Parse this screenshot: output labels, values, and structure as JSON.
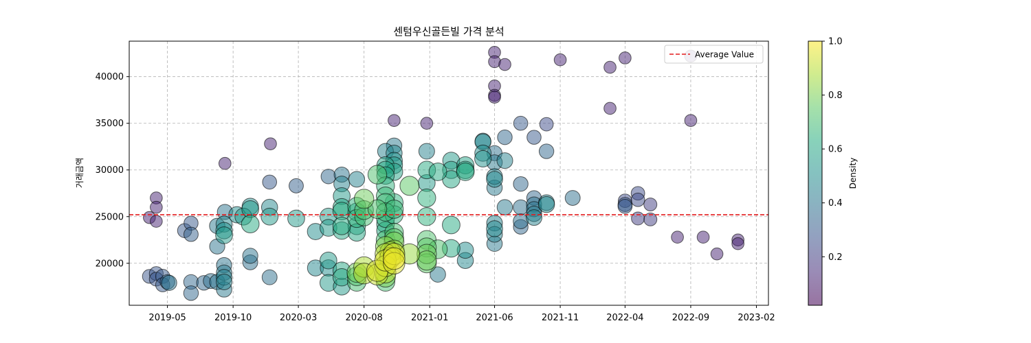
{
  "chart_data": {
    "type": "scatter",
    "title": "센텀우신골든빌 가격 분석",
    "xlabel": "",
    "ylabel": "거래금액",
    "x_ticks": [
      "2019-05",
      "2019-10",
      "2020-03",
      "2020-08",
      "2021-01",
      "2021-06",
      "2021-11",
      "2022-04",
      "2022-09",
      "2023-02"
    ],
    "x_range": [
      "2019-02-01",
      "2023-03-01"
    ],
    "y_ticks": [
      20000,
      25000,
      30000,
      35000,
      40000
    ],
    "ylim": [
      15500,
      43800
    ],
    "grid": true,
    "reference_line": {
      "label": "Average Value",
      "value": 25200,
      "color": "#e31a1c",
      "style": "dashed"
    },
    "legend": {
      "placement": "top-right",
      "entries": [
        "Average Value"
      ]
    },
    "colorbar": {
      "label": "Density",
      "ticks": [
        0.2,
        0.4,
        0.6,
        0.8,
        1.0
      ],
      "range": [
        0.02,
        1.0
      ],
      "colormap": "viridis"
    },
    "points": [
      {
        "x": "2019-03-20",
        "y": 24900,
        "d": 0.12
      },
      {
        "x": "2019-03-20",
        "y": 18600,
        "d": 0.28
      },
      {
        "x": "2019-04-05",
        "y": 27000,
        "d": 0.12
      },
      {
        "x": "2019-04-05",
        "y": 26000,
        "d": 0.12
      },
      {
        "x": "2019-04-05",
        "y": 24500,
        "d": 0.12
      },
      {
        "x": "2019-04-05",
        "y": 18900,
        "d": 0.28
      },
      {
        "x": "2019-04-05",
        "y": 18300,
        "d": 0.28
      },
      {
        "x": "2019-04-20",
        "y": 18600,
        "d": 0.3
      },
      {
        "x": "2019-04-20",
        "y": 17700,
        "d": 0.3
      },
      {
        "x": "2019-05-01",
        "y": 18000,
        "d": 0.35
      },
      {
        "x": "2019-05-05",
        "y": 17900,
        "d": 0.4
      },
      {
        "x": "2019-06-10",
        "y": 23500,
        "d": 0.3
      },
      {
        "x": "2019-06-25",
        "y": 24300,
        "d": 0.3
      },
      {
        "x": "2019-06-25",
        "y": 23100,
        "d": 0.32
      },
      {
        "x": "2019-06-25",
        "y": 18000,
        "d": 0.35
      },
      {
        "x": "2019-06-25",
        "y": 16800,
        "d": 0.35
      },
      {
        "x": "2019-07-25",
        "y": 17900,
        "d": 0.35
      },
      {
        "x": "2019-08-10",
        "y": 18100,
        "d": 0.38
      },
      {
        "x": "2019-08-25",
        "y": 24000,
        "d": 0.42
      },
      {
        "x": "2019-08-25",
        "y": 21800,
        "d": 0.4
      },
      {
        "x": "2019-08-25",
        "y": 18000,
        "d": 0.4
      },
      {
        "x": "2019-09-10",
        "y": 24200,
        "d": 0.48
      },
      {
        "x": "2019-09-10",
        "y": 23500,
        "d": 0.52
      },
      {
        "x": "2019-09-10",
        "y": 23000,
        "d": 0.55
      },
      {
        "x": "2019-09-10",
        "y": 19800,
        "d": 0.4
      },
      {
        "x": "2019-09-10",
        "y": 19000,
        "d": 0.42
      },
      {
        "x": "2019-09-10",
        "y": 18500,
        "d": 0.45
      },
      {
        "x": "2019-09-10",
        "y": 18000,
        "d": 0.45
      },
      {
        "x": "2019-09-10",
        "y": 17200,
        "d": 0.42
      },
      {
        "x": "2019-09-12",
        "y": 30700,
        "d": 0.12
      },
      {
        "x": "2019-09-12",
        "y": 25500,
        "d": 0.4
      },
      {
        "x": "2019-10-10",
        "y": 25200,
        "d": 0.5
      },
      {
        "x": "2019-10-25",
        "y": 25000,
        "d": 0.55
      },
      {
        "x": "2019-11-10",
        "y": 26100,
        "d": 0.5
      },
      {
        "x": "2019-11-10",
        "y": 25800,
        "d": 0.55
      },
      {
        "x": "2019-11-10",
        "y": 24200,
        "d": 0.62
      },
      {
        "x": "2019-11-10",
        "y": 20800,
        "d": 0.4
      },
      {
        "x": "2019-11-10",
        "y": 20100,
        "d": 0.38
      },
      {
        "x": "2019-12-25",
        "y": 28700,
        "d": 0.3
      },
      {
        "x": "2019-12-25",
        "y": 26000,
        "d": 0.48
      },
      {
        "x": "2019-12-25",
        "y": 25000,
        "d": 0.55
      },
      {
        "x": "2019-12-25",
        "y": 18500,
        "d": 0.38
      },
      {
        "x": "2019-12-27",
        "y": 32800,
        "d": 0.12
      },
      {
        "x": "2020-02-25",
        "y": 28300,
        "d": 0.32
      },
      {
        "x": "2020-02-25",
        "y": 24800,
        "d": 0.55
      },
      {
        "x": "2020-04-10",
        "y": 23400,
        "d": 0.5
      },
      {
        "x": "2020-04-10",
        "y": 19500,
        "d": 0.48
      },
      {
        "x": "2020-05-10",
        "y": 29300,
        "d": 0.35
      },
      {
        "x": "2020-05-10",
        "y": 25000,
        "d": 0.55
      },
      {
        "x": "2020-05-10",
        "y": 23800,
        "d": 0.55
      },
      {
        "x": "2020-05-10",
        "y": 20300,
        "d": 0.55
      },
      {
        "x": "2020-05-10",
        "y": 19500,
        "d": 0.5
      },
      {
        "x": "2020-05-10",
        "y": 17900,
        "d": 0.55
      },
      {
        "x": "2020-06-10",
        "y": 29500,
        "d": 0.4
      },
      {
        "x": "2020-06-10",
        "y": 28500,
        "d": 0.45
      },
      {
        "x": "2020-06-10",
        "y": 27200,
        "d": 0.55
      },
      {
        "x": "2020-06-10",
        "y": 26000,
        "d": 0.6
      },
      {
        "x": "2020-06-10",
        "y": 25600,
        "d": 0.62
      },
      {
        "x": "2020-06-10",
        "y": 24000,
        "d": 0.62
      },
      {
        "x": "2020-06-10",
        "y": 23500,
        "d": 0.6
      },
      {
        "x": "2020-06-10",
        "y": 19200,
        "d": 0.6
      },
      {
        "x": "2020-06-10",
        "y": 18500,
        "d": 0.6
      },
      {
        "x": "2020-06-10",
        "y": 17500,
        "d": 0.55
      },
      {
        "x": "2020-07-15",
        "y": 29000,
        "d": 0.45
      },
      {
        "x": "2020-07-15",
        "y": 26100,
        "d": 0.65
      },
      {
        "x": "2020-07-15",
        "y": 25500,
        "d": 0.62
      },
      {
        "x": "2020-07-15",
        "y": 24800,
        "d": 0.65
      },
      {
        "x": "2020-07-15",
        "y": 24000,
        "d": 0.6
      },
      {
        "x": "2020-07-15",
        "y": 23300,
        "d": 0.6
      },
      {
        "x": "2020-07-15",
        "y": 19000,
        "d": 0.78
      },
      {
        "x": "2020-07-15",
        "y": 18600,
        "d": 0.72
      },
      {
        "x": "2020-07-15",
        "y": 18000,
        "d": 0.7
      },
      {
        "x": "2020-08-01",
        "y": 26900,
        "d": 0.78
      },
      {
        "x": "2020-08-01",
        "y": 25700,
        "d": 0.72
      },
      {
        "x": "2020-08-01",
        "y": 25000,
        "d": 0.7
      },
      {
        "x": "2020-08-01",
        "y": 19600,
        "d": 0.88
      },
      {
        "x": "2020-08-01",
        "y": 18900,
        "d": 0.9
      },
      {
        "x": "2020-09-01",
        "y": 29500,
        "d": 0.72
      },
      {
        "x": "2020-09-01",
        "y": 25800,
        "d": 0.72
      },
      {
        "x": "2020-09-01",
        "y": 19200,
        "d": 0.95
      },
      {
        "x": "2020-09-01",
        "y": 18800,
        "d": 0.92
      },
      {
        "x": "2020-09-20",
        "y": 32000,
        "d": 0.45
      },
      {
        "x": "2020-09-20",
        "y": 30500,
        "d": 0.58
      },
      {
        "x": "2020-09-20",
        "y": 30000,
        "d": 0.6
      },
      {
        "x": "2020-09-20",
        "y": 29400,
        "d": 0.6
      },
      {
        "x": "2020-09-20",
        "y": 28300,
        "d": 0.65
      },
      {
        "x": "2020-09-20",
        "y": 27200,
        "d": 0.68
      },
      {
        "x": "2020-09-20",
        "y": 26500,
        "d": 0.68
      },
      {
        "x": "2020-09-20",
        "y": 25500,
        "d": 0.68
      },
      {
        "x": "2020-09-20",
        "y": 24800,
        "d": 0.65
      },
      {
        "x": "2020-09-20",
        "y": 24200,
        "d": 0.62
      },
      {
        "x": "2020-09-20",
        "y": 23500,
        "d": 0.62
      },
      {
        "x": "2020-09-20",
        "y": 22500,
        "d": 0.7
      },
      {
        "x": "2020-09-20",
        "y": 21800,
        "d": 0.82
      },
      {
        "x": "2020-09-20",
        "y": 21000,
        "d": 0.9
      },
      {
        "x": "2020-09-20",
        "y": 20300,
        "d": 0.95
      },
      {
        "x": "2020-09-20",
        "y": 19700,
        "d": 0.92
      },
      {
        "x": "2020-09-20",
        "y": 19000,
        "d": 0.9
      },
      {
        "x": "2020-09-20",
        "y": 18500,
        "d": 0.8
      },
      {
        "x": "2020-09-20",
        "y": 18000,
        "d": 0.7
      },
      {
        "x": "2020-10-01",
        "y": 21200,
        "d": 0.88
      },
      {
        "x": "2020-10-01",
        "y": 20600,
        "d": 0.9
      },
      {
        "x": "2020-10-10",
        "y": 35300,
        "d": 0.12
      },
      {
        "x": "2020-10-10",
        "y": 32600,
        "d": 0.42
      },
      {
        "x": "2020-10-10",
        "y": 31800,
        "d": 0.48
      },
      {
        "x": "2020-10-10",
        "y": 31000,
        "d": 0.52
      },
      {
        "x": "2020-10-10",
        "y": 30500,
        "d": 0.55
      },
      {
        "x": "2020-10-10",
        "y": 29800,
        "d": 0.58
      },
      {
        "x": "2020-10-10",
        "y": 26500,
        "d": 0.65
      },
      {
        "x": "2020-10-10",
        "y": 25800,
        "d": 0.68
      },
      {
        "x": "2020-10-10",
        "y": 25200,
        "d": 0.65
      },
      {
        "x": "2020-10-10",
        "y": 23300,
        "d": 0.7
      },
      {
        "x": "2020-10-10",
        "y": 22700,
        "d": 0.75
      },
      {
        "x": "2020-10-10",
        "y": 22300,
        "d": 0.8
      },
      {
        "x": "2020-10-10",
        "y": 21400,
        "d": 0.85
      },
      {
        "x": "2020-10-10",
        "y": 21000,
        "d": 0.95
      },
      {
        "x": "2020-10-10",
        "y": 20500,
        "d": 0.98
      },
      {
        "x": "2020-10-10",
        "y": 20000,
        "d": 0.96
      },
      {
        "x": "2020-11-15",
        "y": 28300,
        "d": 0.75
      },
      {
        "x": "2020-11-15",
        "y": 21000,
        "d": 0.85
      },
      {
        "x": "2020-12-25",
        "y": 35000,
        "d": 0.12
      },
      {
        "x": "2020-12-25",
        "y": 32000,
        "d": 0.45
      },
      {
        "x": "2020-12-25",
        "y": 30000,
        "d": 0.62
      },
      {
        "x": "2020-12-25",
        "y": 28600,
        "d": 0.55
      },
      {
        "x": "2020-12-25",
        "y": 27000,
        "d": 0.65
      },
      {
        "x": "2020-12-25",
        "y": 25000,
        "d": 0.65
      },
      {
        "x": "2020-12-25",
        "y": 22500,
        "d": 0.72
      },
      {
        "x": "2020-12-25",
        "y": 21700,
        "d": 0.75
      },
      {
        "x": "2020-12-25",
        "y": 21000,
        "d": 0.78
      },
      {
        "x": "2020-12-25",
        "y": 20300,
        "d": 0.78
      },
      {
        "x": "2020-12-25",
        "y": 20000,
        "d": 0.75
      },
      {
        "x": "2021-01-20",
        "y": 29800,
        "d": 0.62
      },
      {
        "x": "2021-01-20",
        "y": 21500,
        "d": 0.72
      },
      {
        "x": "2021-01-20",
        "y": 18800,
        "d": 0.42
      },
      {
        "x": "2021-02-20",
        "y": 31000,
        "d": 0.55
      },
      {
        "x": "2021-02-20",
        "y": 30000,
        "d": 0.58
      },
      {
        "x": "2021-02-20",
        "y": 29000,
        "d": 0.6
      },
      {
        "x": "2021-02-20",
        "y": 24100,
        "d": 0.62
      },
      {
        "x": "2021-02-20",
        "y": 21600,
        "d": 0.62
      },
      {
        "x": "2021-03-25",
        "y": 30500,
        "d": 0.58
      },
      {
        "x": "2021-03-25",
        "y": 30000,
        "d": 0.6
      },
      {
        "x": "2021-03-25",
        "y": 29800,
        "d": 0.62
      },
      {
        "x": "2021-03-25",
        "y": 21400,
        "d": 0.5
      },
      {
        "x": "2021-03-25",
        "y": 20300,
        "d": 0.48
      },
      {
        "x": "2021-05-05",
        "y": 33100,
        "d": 0.45
      },
      {
        "x": "2021-05-05",
        "y": 33000,
        "d": 0.48
      },
      {
        "x": "2021-05-05",
        "y": 31800,
        "d": 0.5
      },
      {
        "x": "2021-05-05",
        "y": 31200,
        "d": 0.52
      },
      {
        "x": "2021-06-01",
        "y": 42600,
        "d": 0.12
      },
      {
        "x": "2021-06-01",
        "y": 41600,
        "d": 0.12
      },
      {
        "x": "2021-06-01",
        "y": 39000,
        "d": 0.12
      },
      {
        "x": "2021-06-01",
        "y": 38000,
        "d": 0.12
      },
      {
        "x": "2021-06-01",
        "y": 37800,
        "d": 0.12
      },
      {
        "x": "2021-06-01",
        "y": 31800,
        "d": 0.38
      },
      {
        "x": "2021-06-01",
        "y": 30800,
        "d": 0.42
      },
      {
        "x": "2021-06-01",
        "y": 29300,
        "d": 0.45
      },
      {
        "x": "2021-06-01",
        "y": 29000,
        "d": 0.48
      },
      {
        "x": "2021-06-01",
        "y": 28100,
        "d": 0.42
      },
      {
        "x": "2021-06-01",
        "y": 24300,
        "d": 0.45
      },
      {
        "x": "2021-06-01",
        "y": 23700,
        "d": 0.48
      },
      {
        "x": "2021-06-01",
        "y": 23100,
        "d": 0.45
      },
      {
        "x": "2021-06-01",
        "y": 22100,
        "d": 0.42
      },
      {
        "x": "2021-06-25",
        "y": 41300,
        "d": 0.12
      },
      {
        "x": "2021-06-25",
        "y": 33500,
        "d": 0.35
      },
      {
        "x": "2021-06-25",
        "y": 31000,
        "d": 0.45
      },
      {
        "x": "2021-06-25",
        "y": 26000,
        "d": 0.42
      },
      {
        "x": "2021-08-01",
        "y": 35000,
        "d": 0.3
      },
      {
        "x": "2021-08-01",
        "y": 28500,
        "d": 0.35
      },
      {
        "x": "2021-08-01",
        "y": 26000,
        "d": 0.38
      },
      {
        "x": "2021-08-01",
        "y": 24500,
        "d": 0.38
      },
      {
        "x": "2021-08-01",
        "y": 23900,
        "d": 0.35
      },
      {
        "x": "2021-09-01",
        "y": 33500,
        "d": 0.3
      },
      {
        "x": "2021-09-01",
        "y": 27000,
        "d": 0.35
      },
      {
        "x": "2021-09-01",
        "y": 26300,
        "d": 0.4
      },
      {
        "x": "2021-09-01",
        "y": 25800,
        "d": 0.4
      },
      {
        "x": "2021-09-01",
        "y": 25300,
        "d": 0.42
      },
      {
        "x": "2021-09-01",
        "y": 24900,
        "d": 0.45
      },
      {
        "x": "2021-09-30",
        "y": 34900,
        "d": 0.25
      },
      {
        "x": "2021-09-30",
        "y": 32000,
        "d": 0.35
      },
      {
        "x": "2021-09-30",
        "y": 26500,
        "d": 0.45
      },
      {
        "x": "2021-09-30",
        "y": 26300,
        "d": 0.48
      },
      {
        "x": "2021-11-01",
        "y": 41800,
        "d": 0.12
      },
      {
        "x": "2021-11-30",
        "y": 27000,
        "d": 0.38
      },
      {
        "x": "2022-02-25",
        "y": 41000,
        "d": 0.12
      },
      {
        "x": "2022-02-25",
        "y": 36600,
        "d": 0.12
      },
      {
        "x": "2022-04-01",
        "y": 42000,
        "d": 0.12
      },
      {
        "x": "2022-04-01",
        "y": 26700,
        "d": 0.25
      },
      {
        "x": "2022-04-01",
        "y": 26300,
        "d": 0.3
      },
      {
        "x": "2022-04-01",
        "y": 26100,
        "d": 0.3
      },
      {
        "x": "2022-05-01",
        "y": 27500,
        "d": 0.25
      },
      {
        "x": "2022-05-01",
        "y": 26800,
        "d": 0.25
      },
      {
        "x": "2022-05-01",
        "y": 24800,
        "d": 0.2
      },
      {
        "x": "2022-05-30",
        "y": 26300,
        "d": 0.2
      },
      {
        "x": "2022-05-30",
        "y": 24700,
        "d": 0.2
      },
      {
        "x": "2022-08-01",
        "y": 22800,
        "d": 0.12
      },
      {
        "x": "2022-09-01",
        "y": 42200,
        "d": 0.12
      },
      {
        "x": "2022-09-01",
        "y": 35300,
        "d": 0.12
      },
      {
        "x": "2022-09-30",
        "y": 22800,
        "d": 0.12
      },
      {
        "x": "2022-11-01",
        "y": 21000,
        "d": 0.12
      },
      {
        "x": "2022-12-20",
        "y": 22500,
        "d": 0.12
      },
      {
        "x": "2022-12-20",
        "y": 22100,
        "d": 0.12
      }
    ]
  }
}
